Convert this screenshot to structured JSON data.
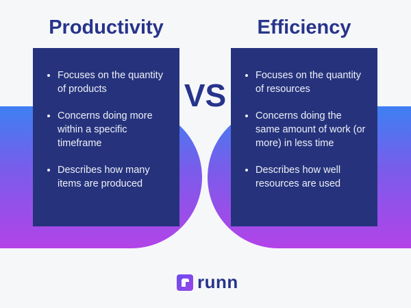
{
  "left": {
    "title": "Productivity",
    "items": [
      "Focuses on the quantity of products",
      "Concerns doing more within a specific timeframe",
      "Describes how many items are produced"
    ]
  },
  "right": {
    "title": "Efficiency",
    "items": [
      "Focuses on the quantity of resources",
      "Concerns doing the same amount of work (or more) in less time",
      "Describes how well resources are used"
    ]
  },
  "vs": "VS",
  "brand": "runn",
  "colors": {
    "box": "#26337c",
    "title": "#27348b",
    "gradient_top": "#3d80f2",
    "gradient_bottom": "#b343e8"
  }
}
